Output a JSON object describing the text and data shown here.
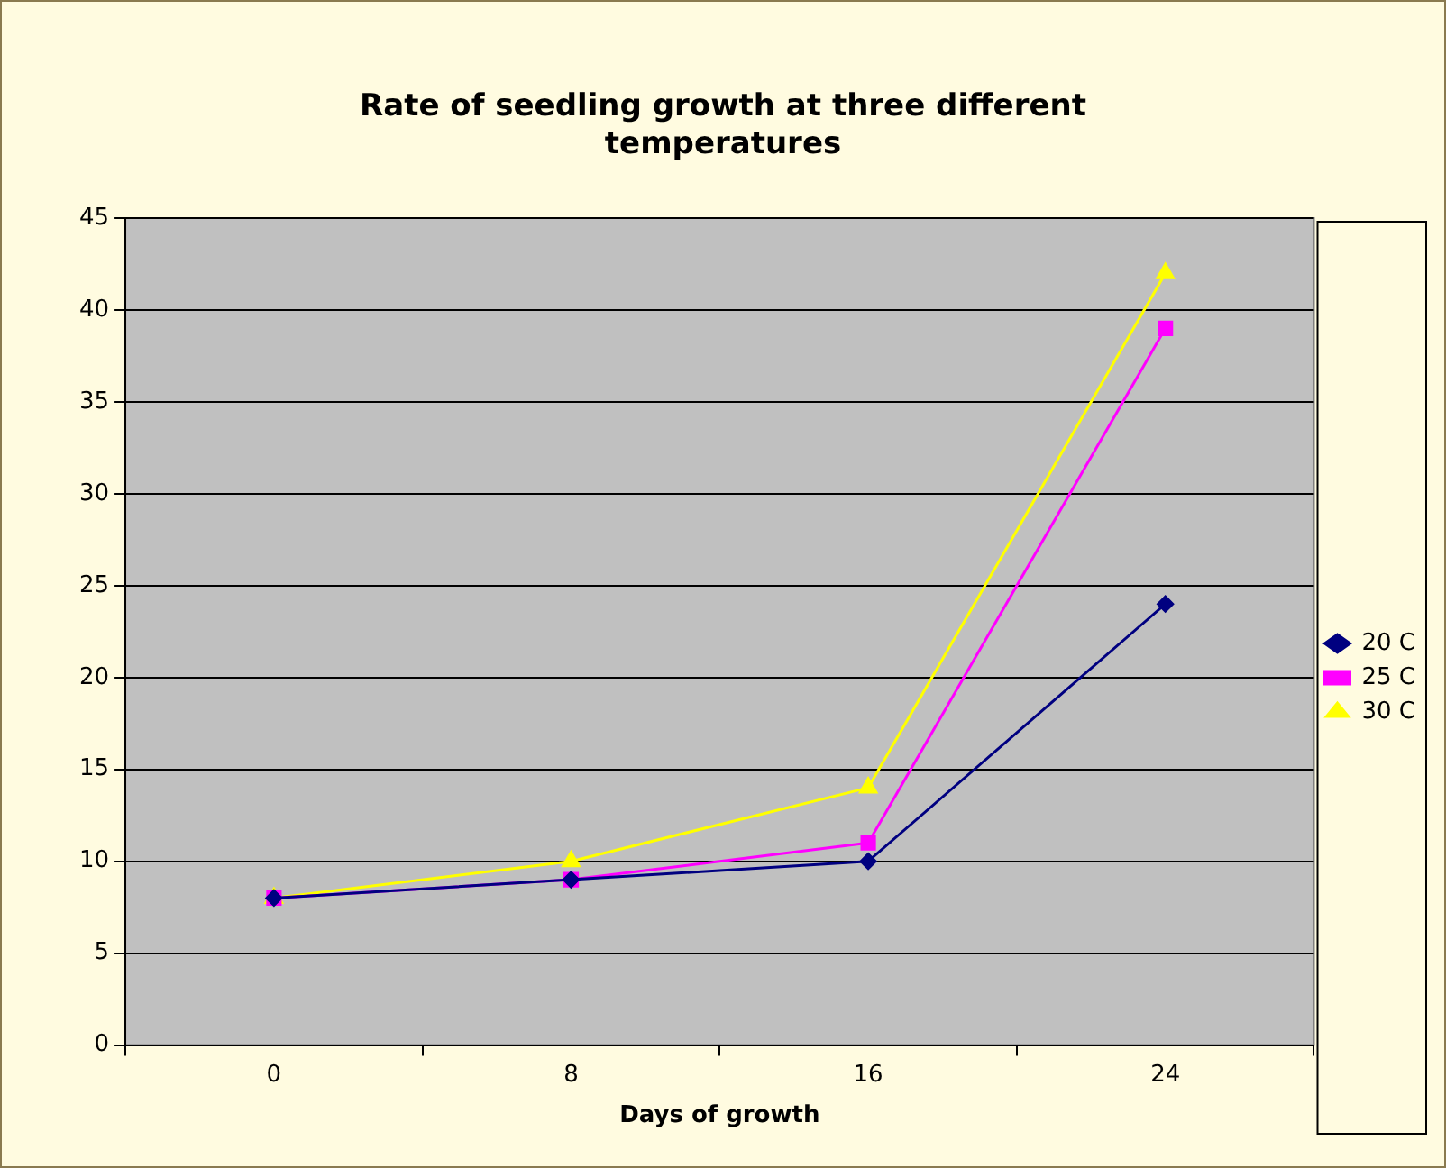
{
  "chart_data": {
    "type": "line",
    "title": "Rate of seedling growth at three different temperatures",
    "xlabel": "Days of growth",
    "categories": [
      "0",
      "8",
      "16",
      "24"
    ],
    "series": [
      {
        "name": "20 C",
        "color": "#000080",
        "marker": "diamond",
        "values": [
          8,
          9,
          10,
          24
        ]
      },
      {
        "name": "25 C",
        "color": "#ff00ff",
        "marker": "square",
        "values": [
          8,
          9,
          11,
          39
        ]
      },
      {
        "name": "30 C",
        "color": "#ffff00",
        "marker": "triangle",
        "values": [
          8,
          10,
          14,
          42
        ]
      }
    ],
    "ylim": [
      0,
      45
    ],
    "yticks": [
      0,
      5,
      10,
      15,
      20,
      25,
      30,
      35,
      40,
      45
    ],
    "grid": "y",
    "legend": "right"
  }
}
